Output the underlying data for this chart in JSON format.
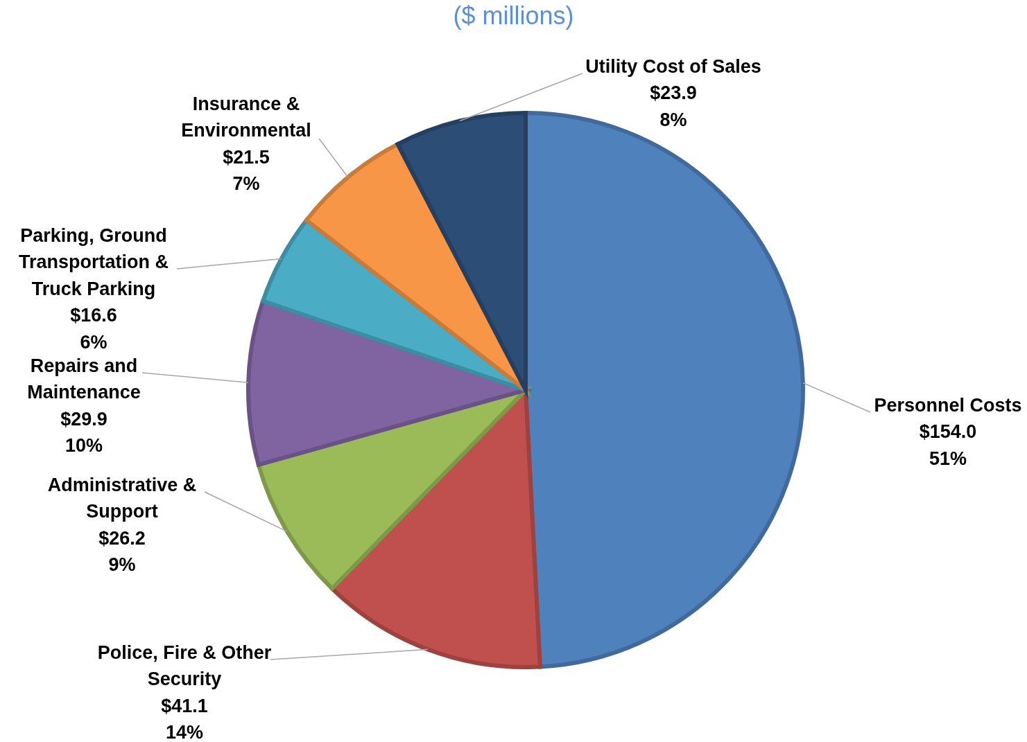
{
  "chart_data": {
    "type": "pie",
    "title": "($ millions)",
    "categories": [
      "Personnel Costs",
      "Police, Fire & Other Security",
      "Administrative & Support",
      "Repairs and Maintenance",
      "Parking, Ground Transportation & Truck Parking",
      "Insurance & Environmental",
      "Utility Cost of Sales"
    ],
    "values": [
      154.0,
      41.1,
      26.2,
      29.9,
      16.6,
      21.5,
      23.9
    ],
    "colors": [
      "#4f81bd",
      "#c0504d",
      "#9bbb59",
      "#8064a2",
      "#4bacc6",
      "#f79646",
      "#2c4d75"
    ],
    "value_labels": [
      "$154.0\n51%",
      "$41.1\n14%",
      "$26.2\n9%",
      "$29.9\n10%",
      "$16.6\n6%",
      "$21.5\n7%",
      "$23.9\n8%"
    ],
    "legend": false
  }
}
